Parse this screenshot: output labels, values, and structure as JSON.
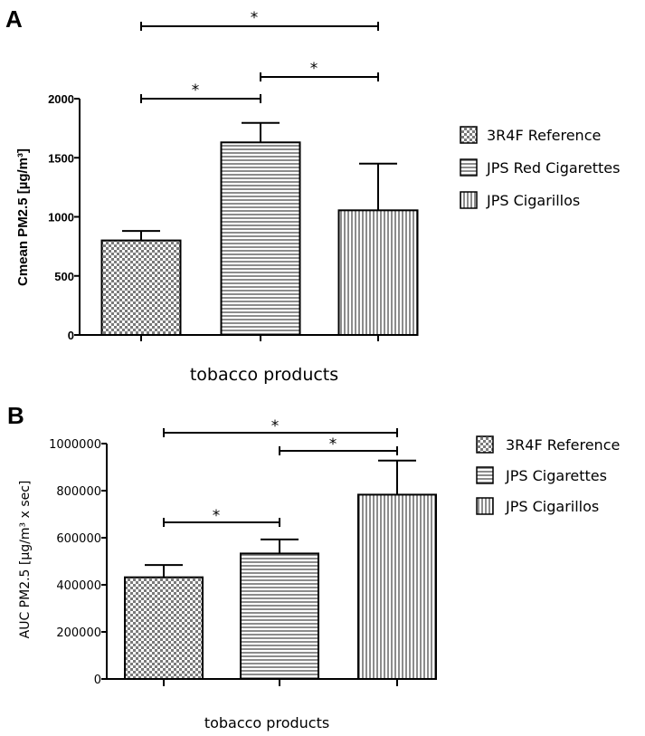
{
  "chart_data": [
    {
      "panel": "A",
      "type": "bar",
      "title": "",
      "xlabel": "tobacco products",
      "ylabel": "Cmean PM2.5 [µg/m³]",
      "ylim": [
        0,
        2000
      ],
      "yticks": [
        0,
        500,
        1000,
        1500,
        2000
      ],
      "categories": [
        "3R4F Reference",
        "JPS Red Cigarettes",
        "JPS Cigarillos"
      ],
      "values": [
        800,
        1630,
        1055
      ],
      "error_upper": [
        80,
        165,
        395
      ],
      "legend": [
        "3R4F Reference",
        "JPS Red Cigarettes",
        "JPS Cigarillos"
      ],
      "legend_position": "right",
      "significance": [
        {
          "from": 0,
          "to": 1,
          "label": "*"
        },
        {
          "from": 1,
          "to": 2,
          "label": "*"
        },
        {
          "from": 0,
          "to": 2,
          "label": "*"
        }
      ]
    },
    {
      "panel": "B",
      "type": "bar",
      "title": "",
      "xlabel": "tobacco products",
      "ylabel": "AUC PM2.5 [µg/m³ x sec]",
      "ylim": [
        0,
        1000000
      ],
      "yticks": [
        0,
        200000,
        400000,
        600000,
        800000,
        1000000
      ],
      "categories": [
        "3R4F Reference",
        "JPS Cigarettes",
        "JPS Cigarillos"
      ],
      "values": [
        432000,
        533000,
        783000
      ],
      "error_upper": [
        52000,
        60000,
        145000
      ],
      "legend": [
        "3R4F Reference",
        "JPS Cigarettes",
        "JPS Cigarillos"
      ],
      "legend_position": "right",
      "significance": [
        {
          "from": 0,
          "to": 1,
          "label": "*"
        },
        {
          "from": 1,
          "to": 2,
          "label": "*"
        },
        {
          "from": 0,
          "to": 2,
          "label": "*"
        }
      ]
    }
  ],
  "colors": {
    "ink": "#000000",
    "pattern_fill": "#8c8c8c",
    "background": "#ffffff"
  }
}
